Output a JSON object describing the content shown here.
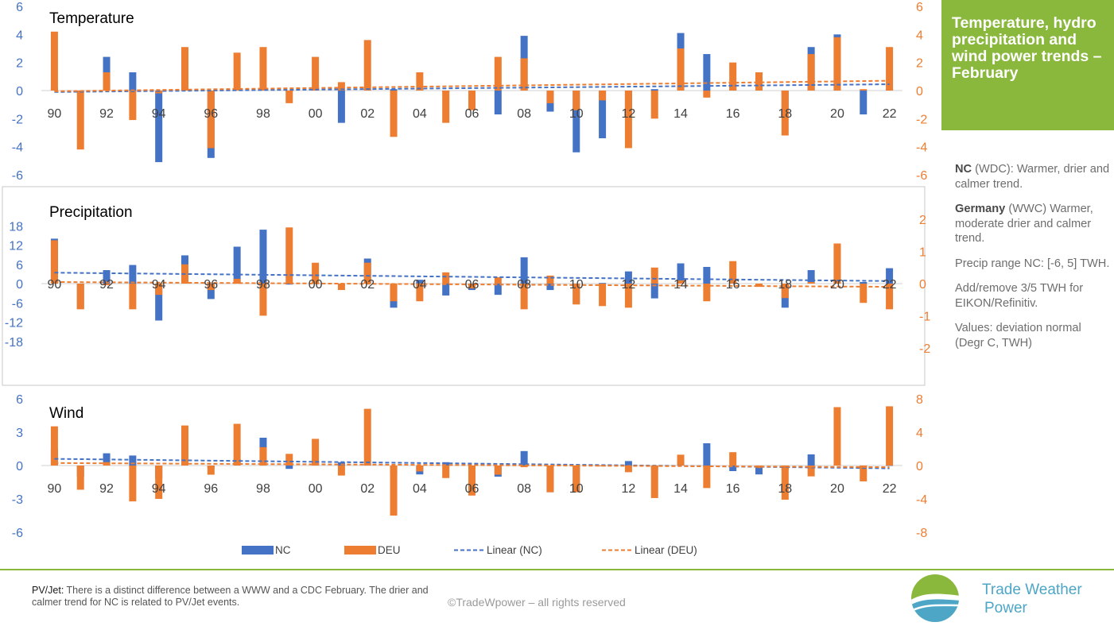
{
  "colors": {
    "nc": "#4472c4",
    "deu": "#ed7d31",
    "green": "#8ab83c",
    "brand": "#4da6c6"
  },
  "sidebar": {
    "title": "Temperature, hydro precipitation and wind power trends – February",
    "notes": [
      {
        "bold": "NC",
        "text": " (WDC): Warmer, drier and calmer trend."
      },
      {
        "bold": "Germany",
        "text": " (WWC) Warmer, moderate drier and calmer trend."
      },
      {
        "bold": "",
        "text": "Precip range NC: [-6, 5] TWH."
      },
      {
        "bold": "",
        "text": "Add/remove 3/5 TWH for EIKON/Refinitiv."
      },
      {
        "bold": "",
        "text": "Values: deviation normal (Degr C, TWH)"
      }
    ]
  },
  "footer": {
    "pvjet_label": "PV/Jet:",
    "pvjet_text": " There is a distinct difference between a WWW and a CDC February. The drier and calmer trend for NC is related to PV/Jet events.",
    "copyright": "©TradeWpower – all rights reserved",
    "brand_line1": "Trade Weather",
    "brand_line2": "Power"
  },
  "legend": [
    "NC",
    "DEU",
    "Linear (NC)",
    "Linear (DEU)"
  ],
  "chart_data": [
    {
      "type": "bar",
      "title": "Temperature",
      "categories": [
        "90",
        "91",
        "92",
        "93",
        "94",
        "95",
        "96",
        "97",
        "98",
        "99",
        "00",
        "01",
        "02",
        "03",
        "04",
        "05",
        "06",
        "07",
        "08",
        "09",
        "10",
        "11",
        "12",
        "13",
        "14",
        "15",
        "16",
        "17",
        "18",
        "19",
        "20",
        "21",
        "22"
      ],
      "x_tick_labels": [
        "90",
        "92",
        "94",
        "96",
        "98",
        "00",
        "02",
        "04",
        "06",
        "08",
        "10",
        "12",
        "14",
        "16",
        "18",
        "20",
        "22"
      ],
      "left_axis": {
        "min": -6,
        "max": 6,
        "ticks": [
          6,
          4,
          2,
          0,
          -2,
          -4,
          -6
        ]
      },
      "right_axis": {
        "min": -6,
        "max": 6,
        "ticks": [
          6,
          4,
          2,
          0,
          -2,
          -4,
          -6
        ]
      },
      "series": [
        {
          "name": "NC",
          "values": [
            0.2,
            -0.1,
            2.4,
            1.3,
            -5.1,
            0.1,
            -4.8,
            0.1,
            0.1,
            -0.1,
            0.1,
            -2.3,
            0.1,
            0.1,
            0.1,
            -0.1,
            -1.2,
            -1.7,
            3.9,
            -1.5,
            -4.4,
            -3.4,
            -1.4,
            0.1,
            4.1,
            2.6,
            0.5,
            0.2,
            -1.6,
            3.1,
            4.0,
            -1.7,
            0.1
          ]
        },
        {
          "name": "DEU",
          "values": [
            4.2,
            -4.2,
            1.3,
            -2.1,
            -0.2,
            3.1,
            -4.1,
            2.7,
            3.1,
            -0.9,
            2.4,
            0.6,
            3.6,
            -3.3,
            1.3,
            -2.3,
            -1.4,
            2.4,
            2.3,
            -0.9,
            -1.4,
            -0.7,
            -4.1,
            -2.0,
            3.0,
            -0.5,
            2.0,
            1.3,
            -3.2,
            2.6,
            3.8,
            0.1,
            3.1
          ]
        }
      ],
      "trend": {
        "nc": [
          -0.1,
          0.45
        ],
        "deu": [
          -0.05,
          0.7
        ]
      }
    },
    {
      "type": "bar",
      "title": "Precipitation",
      "categories": [
        "90",
        "91",
        "92",
        "93",
        "94",
        "95",
        "96",
        "97",
        "98",
        "99",
        "00",
        "01",
        "02",
        "03",
        "04",
        "05",
        "06",
        "07",
        "08",
        "09",
        "10",
        "11",
        "12",
        "13",
        "14",
        "15",
        "16",
        "17",
        "18",
        "19",
        "20",
        "21",
        "22"
      ],
      "x_tick_labels": [
        "90",
        "92",
        "94",
        "96",
        "98",
        "00",
        "02",
        "04",
        "06",
        "08",
        "10",
        "12",
        "14",
        "16",
        "18",
        "20",
        "22"
      ],
      "left_axis": {
        "min": -24,
        "max": 24,
        "ticks": [
          18,
          12,
          6,
          0,
          -6,
          -12,
          -18
        ]
      },
      "right_axis": {
        "min": -2.4,
        "max": 2.4,
        "ticks": [
          2,
          1,
          0,
          -1,
          -2
        ]
      },
      "series": [
        {
          "name": "NC",
          "values": [
            14.0,
            -7.8,
            4.2,
            5.8,
            -11.5,
            8.8,
            -4.8,
            11.5,
            16.8,
            -0.3,
            0.3,
            -0.3,
            7.8,
            -7.5,
            1.2,
            -3.7,
            -2.0,
            -3.5,
            8.2,
            -2.0,
            -6.3,
            0.2,
            3.8,
            -4.6,
            6.3,
            5.2,
            0.3,
            -0.5,
            -7.5,
            4.2,
            11.9,
            0.5,
            4.8
          ]
        },
        {
          "name": "DEU",
          "values": [
            1.35,
            -0.8,
            -0.05,
            -0.8,
            -0.35,
            0.6,
            -0.2,
            0.15,
            -1.0,
            1.75,
            0.65,
            -0.2,
            0.65,
            -0.55,
            -0.55,
            0.35,
            -0.15,
            0.2,
            -0.8,
            0.25,
            -0.65,
            -0.7,
            -0.75,
            0.5,
            0.1,
            -0.55,
            0.7,
            -0.1,
            -0.45,
            0.05,
            1.25,
            -0.6,
            -0.8
          ]
        }
      ],
      "trend": {
        "nc": [
          3.4,
          0.8
        ],
        "deu": [
          0.05,
          -0.1
        ]
      }
    },
    {
      "type": "bar",
      "title": "Wind",
      "categories": [
        "90",
        "91",
        "92",
        "93",
        "94",
        "95",
        "96",
        "97",
        "98",
        "99",
        "00",
        "01",
        "02",
        "03",
        "04",
        "05",
        "06",
        "07",
        "08",
        "09",
        "10",
        "11",
        "12",
        "13",
        "14",
        "15",
        "16",
        "17",
        "18",
        "19",
        "20",
        "21",
        "22"
      ],
      "x_tick_labels": [
        "90",
        "92",
        "94",
        "96",
        "98",
        "00",
        "02",
        "04",
        "06",
        "08",
        "10",
        "12",
        "14",
        "16",
        "18",
        "20",
        "22"
      ],
      "left_axis": {
        "min": -6,
        "max": 6,
        "ticks": [
          6,
          3,
          0,
          -3,
          -6
        ]
      },
      "right_axis": {
        "min": -8,
        "max": 8,
        "ticks": [
          8,
          4,
          0,
          -4,
          -8
        ]
      },
      "series": [
        {
          "name": "NC",
          "values": [
            1.5,
            -1.0,
            1.1,
            0.9,
            -1.2,
            0.1,
            -0.2,
            0.6,
            2.5,
            -0.3,
            0.3,
            0.3,
            0.1,
            -0.8,
            -0.8,
            0.3,
            -0.6,
            -1.0,
            1.3,
            -2.4,
            -2.4,
            0.0,
            0.4,
            -0.4,
            0.3,
            2.0,
            -0.5,
            -0.8,
            -0.4,
            1.0,
            0.1,
            -0.2,
            0.0
          ]
        },
        {
          "name": "DEU",
          "values": [
            4.7,
            -2.9,
            0.4,
            -4.3,
            -4.0,
            4.8,
            -1.1,
            5.0,
            2.2,
            1.4,
            3.2,
            -1.2,
            6.8,
            -6.0,
            -0.7,
            -1.5,
            -3.6,
            -1.1,
            -0.2,
            -3.2,
            -3.2,
            -0.1,
            -0.8,
            -3.9,
            1.3,
            -2.7,
            1.6,
            -0.3,
            -4.1,
            -1.3,
            7.0,
            -1.9,
            7.1
          ]
        }
      ],
      "trend": {
        "nc": [
          0.6,
          -0.25
        ],
        "deu": [
          0.3,
          -0.2
        ]
      }
    }
  ]
}
